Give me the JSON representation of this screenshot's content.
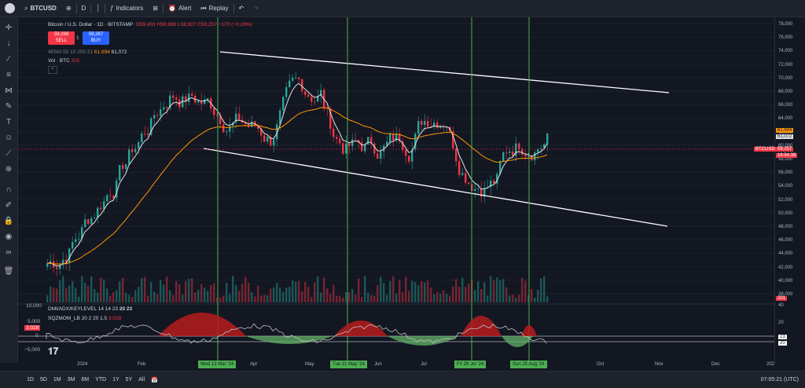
{
  "toolbar": {
    "symbol": "BTCUSD",
    "interval": "D",
    "indicators": "Indicators",
    "alert": "Alert",
    "replay": "Replay"
  },
  "legend": {
    "title": "Bitcoin / U.S. Dollar · 1D · BITSTAMP",
    "ohlc": "O59,453 H59,665 L58,927 C59,257 −170 (−0.29%)",
    "ema": "4EMA 55 10 200 21",
    "ema_v1": "61,694",
    "ema_v2": "61,072",
    "vol": "Vol · BTC",
    "vol_v": "201"
  },
  "trade": {
    "sell_price": "59,266",
    "sell_label": "SELL",
    "spread": "1",
    "buy_price": "59,267",
    "buy_label": "BUY"
  },
  "price_axis": [
    "78,000",
    "76,000",
    "74,000",
    "72,000",
    "70,000",
    "68,000",
    "66,000",
    "64,000",
    "62,000",
    "60,000",
    "58,000",
    "56,000",
    "54,000",
    "52,000",
    "50,000",
    "48,000",
    "46,000",
    "44,000",
    "42,000",
    "40,000",
    "38,000"
  ],
  "price_tags": {
    "ema1": "61,694",
    "ema2": "61,072",
    "symbol": "BTCUSD",
    "last": "59,257",
    "countdown": "16:54:38",
    "vol": "201"
  },
  "osc": {
    "dmi": "DMI/ADX/KEYLEVEL 14 14 23",
    "dmi_v": "20 23",
    "sqz": "SQZMOM_LB 20 2 20 1.5",
    "sqz_v": "3,028",
    "axis_left": [
      "10,000",
      "5,000",
      "0",
      "−5,000"
    ],
    "axis_right": [
      "40",
      "20",
      "23",
      "20"
    ],
    "val_tag": "3,028"
  },
  "xaxis": {
    "labels": [
      "2024",
      "Feb",
      "Apr",
      "May",
      "Jun",
      "Jul",
      "Oct",
      "Nov",
      "Dec",
      "202"
    ],
    "markers": [
      "Wed 13 Mar '24",
      "Tue 21 May '24",
      "Fri 26 Jul '24",
      "Sun 25 Aug '24"
    ]
  },
  "bottom": {
    "ranges": [
      "1D",
      "5D",
      "1M",
      "3M",
      "6M",
      "YTD",
      "1Y",
      "5Y",
      "All"
    ],
    "clock": "07:05:21 (UTC)"
  },
  "colors": {
    "up": "#26a69a",
    "down": "#f23645",
    "ema_fast": "#e0e0e0",
    "ema_slow": "#ff9800",
    "marker": "#4caf50"
  }
}
